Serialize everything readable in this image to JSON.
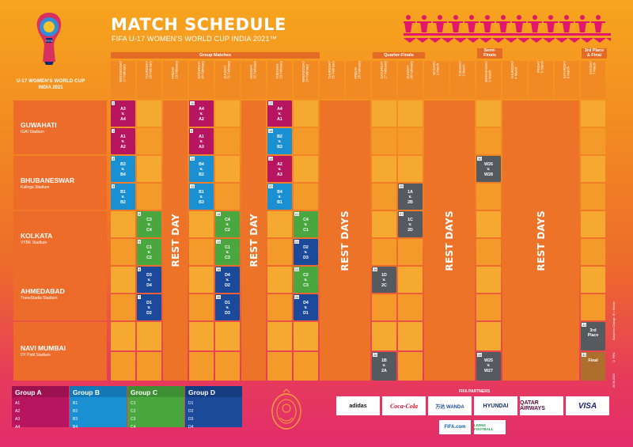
{
  "header": {
    "title": "MATCH SCHEDULE",
    "subtitle": "FIFA U-17 WOMEN'S WORLD CUP INDIA 2021™",
    "logo_line1": "U-17 WOMEN'S WORLD CUP",
    "logo_line2": "INDIA 2021",
    "logo_text": "FIFA"
  },
  "stages": {
    "group": "Group Matches",
    "qf": "Quarter-Finals",
    "sf": "Semi-\nFinals",
    "final": "3rd Place\n& Final"
  },
  "days": [
    "WEDNESDAY\n17 February",
    "THURSDAY\n18 February",
    "FRIDAY\n19 February",
    "SATURDAY\n20 February",
    "SUNDAY\n21 February",
    "MONDAY\n22 February",
    "TUESDAY\n23 February",
    "WEDNESDAY\n24 February",
    "THURSDAY\n25 February",
    "FRIDAY\n26 February",
    "SATURDAY\n27 February",
    "SUNDAY\n28 February",
    "MONDAY\n1 March",
    "TUESDAY\n2 March",
    "WEDNESDAY\n3 March",
    "THURSDAY\n4 March",
    "FRIDAY\n5 March",
    "SATURDAY\n6 March",
    "SUNDAY\n7 March"
  ],
  "venues": [
    {
      "city": "GUWAHATI",
      "stadium": "IGAI Stadium"
    },
    {
      "city": "BHUBANESWAR",
      "stadium": "Kalinga Stadium"
    },
    {
      "city": "KOLKATA",
      "stadium": "VYBK Stadium"
    },
    {
      "city": "AHMEDABAD",
      "stadium": "TransStadia Stadium"
    },
    {
      "city": "NAVI MUMBAI",
      "stadium": "DY Patil Stadium"
    }
  ],
  "rest": {
    "day": "REST DAY",
    "days": "REST DAYS"
  },
  "matches": [
    {
      "n": "2",
      "t1": "A3",
      "v": "v.",
      "t2": "A4"
    },
    {
      "n": "1",
      "t1": "A1",
      "v": "v.",
      "t2": "A2"
    },
    {
      "n": "4",
      "t1": "B3",
      "v": "v.",
      "t2": "B4"
    },
    {
      "n": "3",
      "t1": "B1",
      "v": "v.",
      "t2": "B2"
    },
    {
      "n": "6",
      "t1": "C3",
      "v": "v.",
      "t2": "C4"
    },
    {
      "n": "5",
      "t1": "C1",
      "v": "v.",
      "t2": "C2"
    },
    {
      "n": "8",
      "t1": "D3",
      "v": "v.",
      "t2": "D4"
    },
    {
      "n": "7",
      "t1": "D1",
      "v": "v.",
      "t2": "D2"
    },
    {
      "n": "10",
      "t1": "A4",
      "v": "v.",
      "t2": "A2"
    },
    {
      "n": "9",
      "t1": "A1",
      "v": "v.",
      "t2": "A3"
    },
    {
      "n": "12",
      "t1": "B4",
      "v": "v.",
      "t2": "B2"
    },
    {
      "n": "11",
      "t1": "B1",
      "v": "v.",
      "t2": "B3"
    },
    {
      "n": "14",
      "t1": "C4",
      "v": "v.",
      "t2": "C2"
    },
    {
      "n": "13",
      "t1": "C1",
      "v": "v.",
      "t2": "C3"
    },
    {
      "n": "16",
      "t1": "D4",
      "v": "v.",
      "t2": "D2"
    },
    {
      "n": "15",
      "t1": "D1",
      "v": "v.",
      "t2": "D3"
    },
    {
      "n": "17",
      "t1": "A4",
      "v": "v.",
      "t2": "A1"
    },
    {
      "n": "18",
      "t1": "B2",
      "v": "v.",
      "t2": "B3"
    },
    {
      "n": "19",
      "t1": "A2",
      "v": "v.",
      "t2": "A3"
    },
    {
      "n": "20",
      "t1": "B4",
      "v": "v.",
      "t2": "B1"
    },
    {
      "n": "21",
      "t1": "C4",
      "v": "v.",
      "t2": "C1"
    },
    {
      "n": "23",
      "t1": "D2",
      "v": "v.",
      "t2": "D3"
    },
    {
      "n": "22",
      "t1": "C2",
      "v": "v.",
      "t2": "C3"
    },
    {
      "n": "24",
      "t1": "D4",
      "v": "v.",
      "t2": "D1"
    },
    {
      "n": "25",
      "t1": "1A",
      "v": "v.",
      "t2": "2B"
    },
    {
      "n": "27",
      "t1": "1C",
      "v": "v.",
      "t2": "2D"
    },
    {
      "n": "28",
      "t1": "1D",
      "v": "v.",
      "t2": "2C"
    },
    {
      "n": "26",
      "t1": "1B",
      "v": "v.",
      "t2": "2A"
    },
    {
      "n": "30",
      "t1": "W26",
      "v": "v.",
      "t2": "W28"
    },
    {
      "n": "29",
      "t1": "W25",
      "v": "v.",
      "t2": "W27"
    },
    {
      "n": "31",
      "t1": "3rd",
      "v": "Place",
      "t2": ""
    },
    {
      "n": "32",
      "t1": "Final",
      "v": "",
      "t2": ""
    }
  ],
  "groups": [
    {
      "name": "Group A",
      "teams": [
        "A1",
        "A2",
        "A3",
        "A4"
      ],
      "color": "#b7155f"
    },
    {
      "name": "Group B",
      "teams": [
        "B1",
        "B2",
        "B3",
        "B4"
      ],
      "color": "#1a8fd2"
    },
    {
      "name": "Group C",
      "teams": [
        "C1",
        "C2",
        "C3",
        "C4"
      ],
      "color": "#4aa63f"
    },
    {
      "name": "Group D",
      "teams": [
        "D1",
        "D2",
        "D3",
        "D4"
      ],
      "color": "#1b4a9a"
    }
  ],
  "partners": {
    "title": "FIFA PARTNERS",
    "list": [
      "adidas",
      "Coca-Cola",
      "万达 WANDA",
      "HYUNDAI",
      "QATAR AIRWAYS",
      "VISA"
    ],
    "bottom": [
      "FIFA.com",
      "LIVING FOOTBALL"
    ]
  },
  "side_notes": [
    "Subject to Change. W = Winner",
    "© FIFA",
    "25.06.2020"
  ]
}
